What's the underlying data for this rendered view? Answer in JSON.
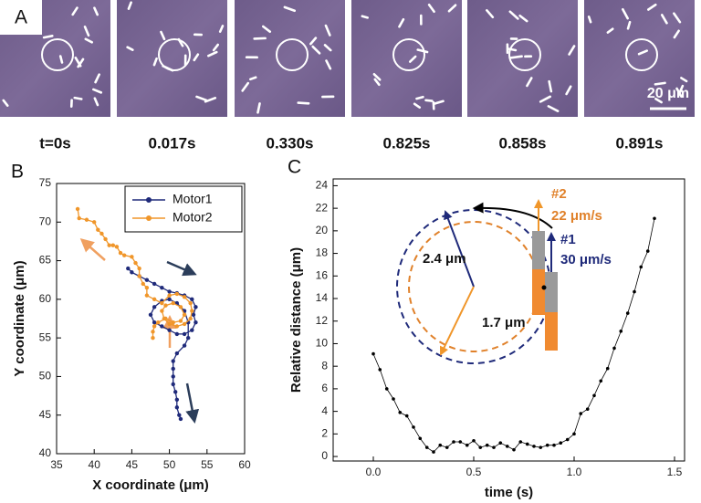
{
  "image_panel": {
    "label": "A",
    "times": [
      "t=0s",
      "0.017s",
      "0.330s",
      "0.825s",
      "0.858s",
      "0.891s"
    ],
    "scale_bar": "20 μm"
  },
  "chart_data": [
    {
      "type": "line",
      "panel_label": "B",
      "x_label": "X coordinate (μm)",
      "y_label": "Y coordinate (μm)",
      "xlim": [
        35,
        60
      ],
      "xticks": [
        35,
        40,
        45,
        50,
        55,
        60
      ],
      "ylim": [
        40,
        75
      ],
      "yticks": [
        40,
        45,
        50,
        55,
        60,
        65,
        70,
        75
      ],
      "legend": "upper right",
      "marker": "circle",
      "series": [
        {
          "name": "Motor1",
          "color": "#1f2a7a",
          "x": [
            44.5,
            45,
            46,
            47,
            48,
            49,
            50,
            51,
            52,
            53,
            53.5,
            53.2,
            53.5,
            53,
            52,
            51,
            50,
            49,
            48,
            47.5,
            48,
            49,
            50,
            51,
            52,
            52.5,
            52.5,
            52,
            51,
            50.5,
            50.5,
            50.5,
            50.5,
            50.8,
            51,
            51,
            51.3,
            51.5
          ],
          "values": [
            64,
            63.5,
            63,
            62.5,
            62,
            61.5,
            61,
            60.8,
            60.5,
            60,
            59,
            58,
            57,
            56,
            55.5,
            55.5,
            56,
            56.5,
            57,
            58,
            59,
            59.8,
            60,
            59.5,
            58.5,
            57,
            55,
            54,
            53,
            52,
            51,
            50,
            49,
            48,
            47,
            46,
            45,
            44.5
          ]
        },
        {
          "name": "Motor2",
          "color": "#f0962a",
          "x": [
            37.8,
            38,
            39,
            40,
            40.5,
            41,
            41.5,
            42,
            42.5,
            43,
            43.5,
            44,
            45,
            45.5,
            46,
            46,
            46.5,
            47,
            47,
            48,
            49,
            50,
            51,
            52,
            52.8,
            53,
            52.8,
            52,
            51,
            50,
            49.3,
            49,
            49.5,
            50.5,
            51.5,
            52,
            51.5,
            50.5,
            49.5,
            48.5,
            48,
            47.8,
            47.8
          ],
          "values": [
            71.7,
            70.5,
            70.3,
            70,
            69,
            68.5,
            67.8,
            67,
            67,
            66.8,
            66,
            65.7,
            65.5,
            64.7,
            64,
            63,
            62,
            61.5,
            60.5,
            60,
            59.5,
            60.5,
            60.7,
            60.3,
            59.5,
            58.5,
            57.5,
            56.8,
            56.5,
            56.8,
            57.5,
            58.5,
            59.2,
            59.5,
            59,
            58,
            57.2,
            57,
            57.5,
            57,
            56.5,
            55.8,
            55
          ]
        }
      ]
    },
    {
      "type": "line",
      "panel_label": "C",
      "x_label": "time (s)",
      "y_label": "Relative distance (μm)",
      "xlim": [
        -0.2,
        1.55
      ],
      "xticks": [
        {
          "value": 0,
          "label": "0.0"
        },
        0.5,
        {
          "value": 1,
          "label": "1.0"
        },
        1.5
      ],
      "ylim": [
        -0.4,
        24.6
      ],
      "yticks": [
        0,
        2,
        4,
        6,
        8,
        10,
        12,
        14,
        16,
        18,
        20,
        22,
        24
      ],
      "marker": "circle",
      "color": "#000000",
      "x": [
        0,
        0.033,
        0.067,
        0.1,
        0.133,
        0.167,
        0.2,
        0.233,
        0.267,
        0.3,
        0.333,
        0.367,
        0.4,
        0.433,
        0.467,
        0.5,
        0.533,
        0.567,
        0.6,
        0.633,
        0.667,
        0.7,
        0.733,
        0.767,
        0.8,
        0.833,
        0.867,
        0.9,
        0.933,
        0.967,
        1.0,
        1.033,
        1.067,
        1.1,
        1.133,
        1.167,
        1.2,
        1.233,
        1.267,
        1.3,
        1.333,
        1.367,
        1.4
      ],
      "values": [
        9.1,
        7.7,
        6.0,
        5.1,
        3.9,
        3.6,
        2.6,
        1.6,
        0.8,
        0.4,
        1.0,
        0.8,
        1.3,
        1.3,
        1.0,
        1.4,
        0.8,
        1.0,
        0.8,
        1.2,
        0.9,
        0.6,
        1.3,
        1.1,
        0.9,
        0.8,
        1.0,
        1.0,
        1.2,
        1.5,
        2.0,
        3.8,
        4.2,
        5.4,
        6.7,
        7.8,
        9.6,
        11.1,
        12.7,
        14.6,
        16.8,
        18.2,
        21.1
      ],
      "annotations": {
        "outer_radius": "2.4 μm",
        "inner_radius": "1.7 μm",
        "motor2_label": "#2",
        "motor2_speed": "22 μm/s",
        "motor1_label": "#1",
        "motor1_speed": "30 μm/s"
      }
    }
  ]
}
